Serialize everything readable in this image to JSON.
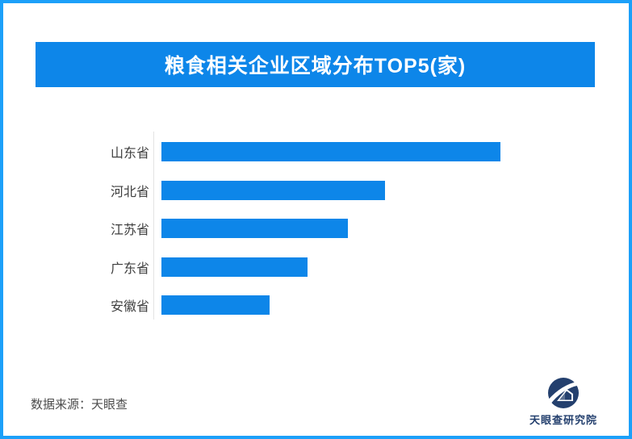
{
  "title": "粮食相关企业区域分布TOP5(家)",
  "chart_data": {
    "type": "bar",
    "orientation": "horizontal",
    "title": "粮食相关企业区域分布TOP5(家)",
    "categories": [
      "山东省",
      "河北省",
      "江苏省",
      "广东省",
      "安徽省"
    ],
    "values": [
      100,
      66,
      55,
      43,
      32
    ],
    "value_note": "no numeric labels or axis ticks shown in image; values are relative bar lengths estimated from pixels, longest bar (山东省) = 100",
    "xlabel": "",
    "ylabel": "",
    "grid": false,
    "legend": false,
    "bar_color": "#0d86e9"
  },
  "footer": {
    "source_text": "数据来源：天眼查",
    "brand_name": "天眼查研究院"
  },
  "icons": {
    "brand_logo": "tianyancha-eye-logo"
  },
  "colors": {
    "brand_blue": "#0d86e9",
    "border_blue": "#1ca0f9",
    "logo_navy": "#24406e",
    "label_gray": "#3f3f3f",
    "banner_text": "#ffffff"
  }
}
